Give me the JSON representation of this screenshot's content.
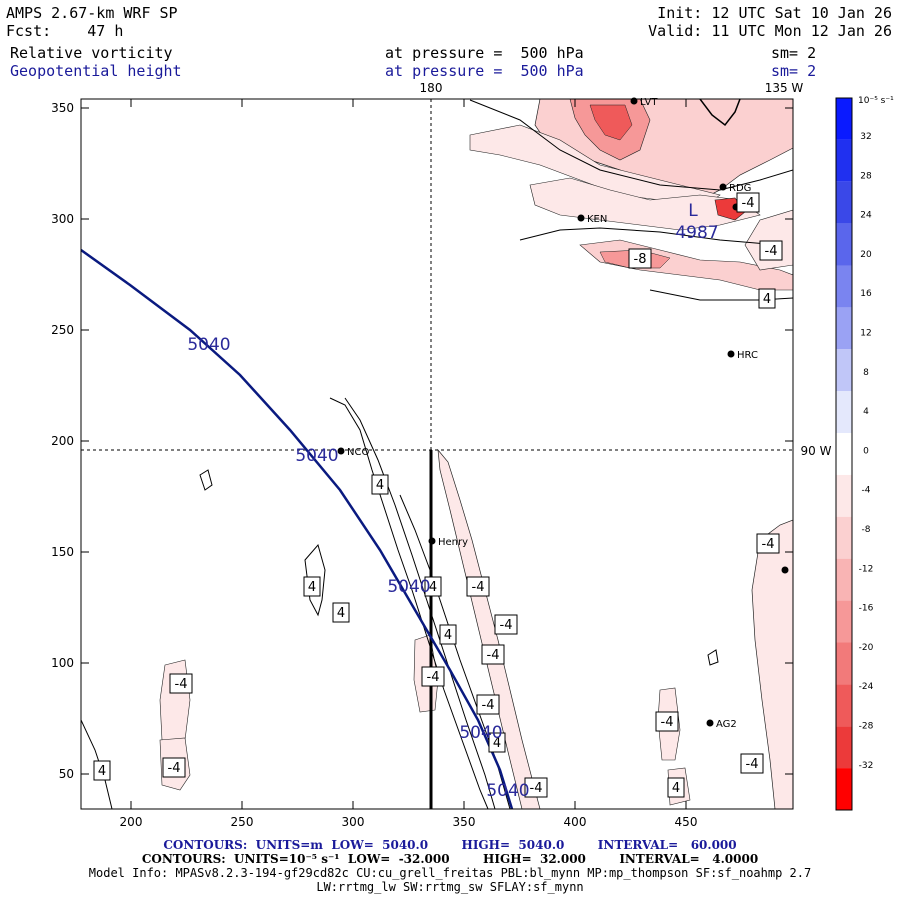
{
  "header": {
    "model": "AMPS 2.67-km WRF SP",
    "fcst_label": "Fcst:",
    "fcst_value": "47 h",
    "init": "Init: 12 UTC Sat 10 Jan 26",
    "valid": "Valid: 11 UTC Mon 12 Jan 26",
    "field1": "Relative vorticity",
    "field1_pressure": "at pressure =  500 hPa",
    "field1_sm": "sm= 2",
    "field2": "Geopotential height",
    "field2_pressure": "at pressure =  500 hPa",
    "field2_sm": "sm= 2"
  },
  "map": {
    "x_ticks": [
      "200",
      "250",
      "300",
      "350",
      "400",
      "450"
    ],
    "y_ticks": [
      "350",
      "300",
      "250",
      "200",
      "150",
      "100",
      "50"
    ],
    "lon_top_180": "180",
    "lon_top_135w": "135 W",
    "lon_right_90w": "90 W",
    "stations": [
      {
        "name": "LVT"
      },
      {
        "name": "RDG"
      },
      {
        "name": "KEN"
      },
      {
        "name": "HRC"
      },
      {
        "name": "NCO"
      },
      {
        "name": "Henry"
      },
      {
        "name": "AG2"
      }
    ],
    "height_labels": [
      "5040",
      "5040",
      "5040",
      "5040",
      "5040"
    ],
    "low_label": "L",
    "low_value": "4987",
    "vort_labels": [
      "-4",
      "-4",
      "-8",
      "4",
      "4",
      "4",
      "4",
      "-4",
      "4",
      "-4",
      "4",
      "-4",
      "-4",
      "-4",
      "4",
      "4",
      "-4",
      "-4",
      "-4",
      "-4",
      "4",
      "-4",
      "-4"
    ],
    "colors": {
      "height_contour": "#0a1a80",
      "vort_pos_line": "#000000"
    }
  },
  "colorbar": {
    "unit": "10⁻⁵ s⁻¹",
    "labels": [
      "32",
      "28",
      "24",
      "20",
      "16",
      "12",
      "8",
      "4",
      "0",
      "-4",
      "-8",
      "-12",
      "-16",
      "-20",
      "-24",
      "-28",
      "-32"
    ],
    "colors": [
      "#0a1aff",
      "#2030f0",
      "#3a48e8",
      "#5a66ec",
      "#7a84f0",
      "#9aa2f4",
      "#c0c6f8",
      "#e4e8fc",
      "#ffffff",
      "#fde8e8",
      "#fbd0d0",
      "#f9b4b4",
      "#f69898",
      "#f27a7a",
      "#ef5a5a",
      "#ec3a3a",
      "#ff0000"
    ]
  },
  "footer": {
    "line1": "CONTOURS:  UNITS=m  LOW=  5040.0        HIGH=  5040.0        INTERVAL=   60.000",
    "line2": "CONTOURS:  UNITS=10⁻⁵ s⁻¹  LOW=  -32.000        HIGH=  32.000        INTERVAL=   4.0000",
    "line3": "Model Info: MPASv8.2.3-194-gf29cd82c CU:cu_grell_freitas PBL:bl_mynn MP:mp_thompson SF:sf_noahmp 2.7",
    "line4": "LW:rrtmg_lw SW:rrtmg_sw SFLAY:sf_mynn"
  }
}
